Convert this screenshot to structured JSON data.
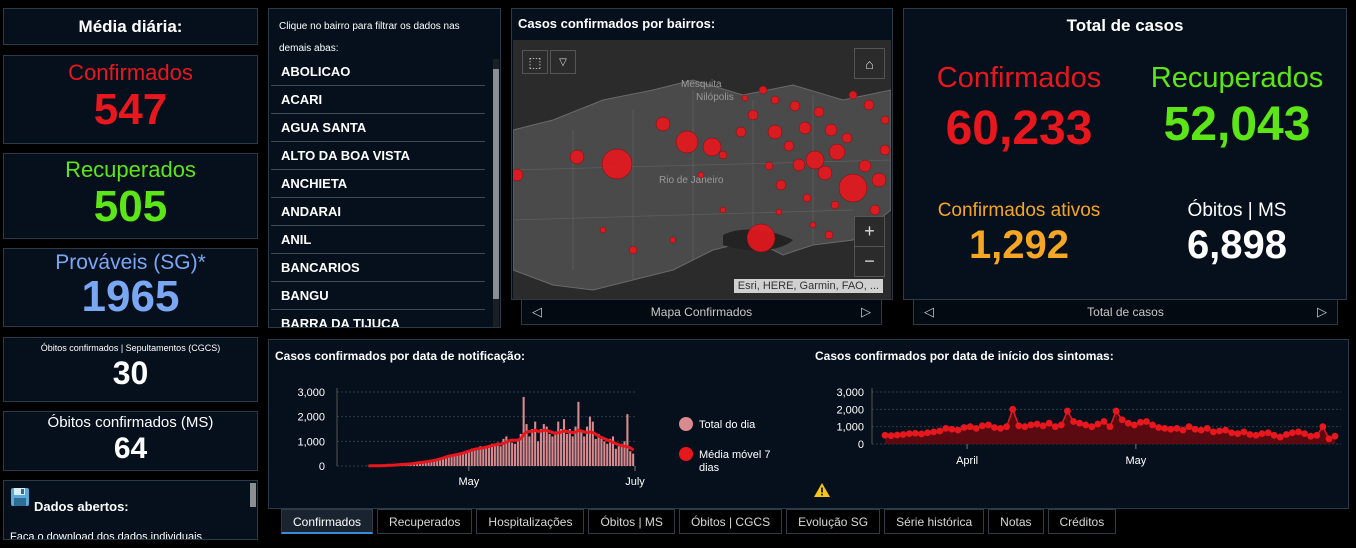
{
  "daily": {
    "title": "Média diária:",
    "cards": [
      {
        "label": "Confirmados",
        "value": "547",
        "color": "#e8171d"
      },
      {
        "label": "Recuperados",
        "value": "505",
        "color": "#5ce618"
      },
      {
        "label": "Prováveis (SG)*",
        "value": "1965",
        "color": "#7aa7f4"
      },
      {
        "label": "Óbitos confirmados | Sepultamentos (CGCS)",
        "value": "30",
        "color": "#ffffff"
      },
      {
        "label": "Óbitos confirmados (MS)",
        "value": "64",
        "color": "#ffffff"
      }
    ]
  },
  "dados_abertos": {
    "title": "Dados abertos:",
    "text": "Faça o download dos dados individuais"
  },
  "bairros": {
    "hint": "Clique no bairro para filtrar os dados nas demais abas:",
    "items": [
      "ABOLICAO",
      "ACARI",
      "AGUA SANTA",
      "ALTO DA BOA VISTA",
      "ANCHIETA",
      "ANDARAI",
      "ANIL",
      "BANCARIOS",
      "BANGU",
      "BARRA DA TIJUCA"
    ]
  },
  "map": {
    "title": "Casos confirmados por bairros:",
    "labels": [
      "Mesquita",
      "Nilópolis",
      "Rio de Janeiro"
    ],
    "attribution": "Esri, HERE, Garmin, FAO, ...",
    "pager_label": "Mapa Confirmados"
  },
  "totals": {
    "title": "Total de casos",
    "confirmados": {
      "label": "Confirmados",
      "value": "60,233",
      "color": "#e8171d"
    },
    "recuperados": {
      "label": "Recuperados",
      "value": "52,043",
      "color": "#5ce618"
    },
    "ativos": {
      "label": "Confirmados ativos",
      "value": "1,292",
      "color": "#f5a623"
    },
    "obitos": {
      "label": "Óbitos | MS",
      "value": "6,898",
      "color": "#ffffff"
    },
    "pager_label": "Total de casos"
  },
  "chart_data": [
    {
      "type": "bar",
      "title": "Casos confirmados por data de notificação:",
      "y_ticks": [
        "3,000",
        "2,000",
        "1,000",
        "0"
      ],
      "x_ticks": [
        "May",
        "July"
      ],
      "ylim": [
        0,
        3000
      ],
      "legend": [
        "Total do dia",
        "Média móvel 7 dias"
      ],
      "colors": {
        "bars": "#d98a8f",
        "line": "#e8171d"
      },
      "bars": [
        10,
        5,
        8,
        12,
        15,
        20,
        25,
        30,
        40,
        35,
        50,
        60,
        80,
        70,
        90,
        100,
        120,
        140,
        150,
        130,
        180,
        200,
        220,
        250,
        280,
        300,
        350,
        400,
        380,
        420,
        460,
        500,
        520,
        560,
        600,
        650,
        700,
        680,
        750,
        800,
        720,
        780,
        850,
        900,
        850,
        950,
        800,
        1100,
        1200,
        1000,
        950,
        900,
        1000,
        1300,
        2800,
        1700,
        1200,
        1500,
        1800,
        1000,
        1500,
        1700,
        1600,
        1300,
        1200,
        1400,
        1800,
        1500,
        1900,
        1300,
        1500,
        1200,
        1600,
        2600,
        1400,
        1200,
        1600,
        2000,
        1800,
        1100,
        1300,
        1200,
        1000,
        900,
        1100,
        1200,
        700,
        800,
        900,
        1000,
        2100,
        600,
        500
      ],
      "moving_avg": [
        5,
        8,
        10,
        12,
        14,
        18,
        22,
        28,
        34,
        38,
        45,
        55,
        65,
        72,
        82,
        95,
        110,
        125,
        140,
        150,
        165,
        185,
        205,
        230,
        260,
        290,
        330,
        370,
        400,
        420,
        445,
        470,
        500,
        530,
        570,
        610,
        650,
        680,
        700,
        720,
        740,
        770,
        800,
        830,
        860,
        880,
        890,
        920,
        980,
        1030,
        1050,
        1040,
        1060,
        1120,
        1300,
        1380,
        1400,
        1420,
        1450,
        1400,
        1420,
        1450,
        1430,
        1400,
        1350,
        1320,
        1350,
        1380,
        1420,
        1400,
        1380,
        1350,
        1380,
        1450,
        1420,
        1380,
        1360,
        1380,
        1350,
        1280,
        1200,
        1150,
        1100,
        1050,
        1000,
        950,
        900,
        850,
        820,
        800,
        780,
        720,
        650
      ]
    },
    {
      "type": "area",
      "title": "Casos confirmados por data de início dos sintomas:",
      "y_ticks": [
        "3,000",
        "2,000",
        "1,000",
        "0"
      ],
      "x_ticks": [
        "April",
        "May"
      ],
      "ylim": [
        0,
        3000
      ],
      "colors": {
        "line": "#e8171d",
        "fill": "#5a0a10"
      },
      "values": [
        500,
        480,
        520,
        550,
        600,
        620,
        580,
        650,
        700,
        750,
        900,
        850,
        800,
        950,
        1000,
        900,
        1050,
        1100,
        950,
        900,
        1000,
        2000,
        1050,
        1000,
        1100,
        1150,
        1050,
        1200,
        1000,
        1100,
        1900,
        1300,
        1200,
        1100,
        1000,
        1150,
        1300,
        1000,
        1900,
        1400,
        1200,
        1100,
        1250,
        1300,
        1100,
        950,
        900,
        850,
        900,
        800,
        1000,
        850,
        800,
        900,
        700,
        750,
        800,
        650,
        600,
        700,
        550,
        500,
        600,
        650,
        500,
        400,
        550,
        650,
        700,
        600,
        450,
        500,
        1000,
        300,
        450
      ]
    }
  ],
  "tabs": [
    "Confirmados",
    "Recuperados",
    "Hospitalizações",
    "Óbitos | MS",
    "Óbitos | CGCS",
    "Evolução SG",
    "Série histórica",
    "Notas",
    "Créditos"
  ]
}
